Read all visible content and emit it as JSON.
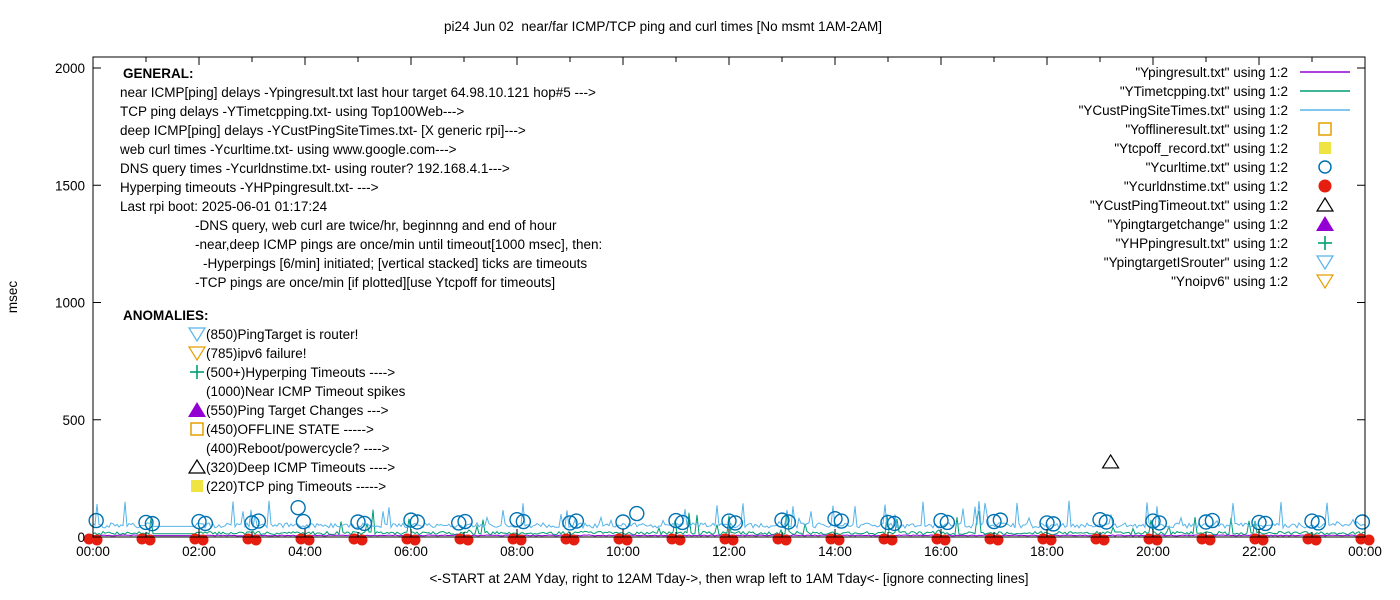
{
  "title": "pi24 Jun 02  near/far ICMP/TCP ping and curl times [No msmt 1AM-2AM]",
  "y_axis": {
    "label": "msec",
    "ticks": [
      0,
      500,
      1000,
      1500,
      2000
    ],
    "max": 2000
  },
  "x_axis": {
    "label": "<-START at 2AM Yday, right to 12AM Tday->, then wrap left to 1AM Tday<- [ignore connecting lines]",
    "tick_labels": [
      "00:00",
      "02:00",
      "04:00",
      "06:00",
      "08:00",
      "10:00",
      "12:00",
      "14:00",
      "16:00",
      "18:00",
      "20:00",
      "22:00",
      "00:00"
    ],
    "hours_span": 24
  },
  "general": {
    "heading": "GENERAL:",
    "lines": [
      {
        "indent": 0,
        "text": "near ICMP[ping] delays -Ypingresult.txt last hour target 64.98.10.121 hop#5 --->"
      },
      {
        "indent": 0,
        "text": "TCP ping delays -YTimetcpping.txt- using Top100Web--->"
      },
      {
        "indent": 0,
        "text": "deep ICMP[ping] delays -YCustPingSiteTimes.txt- [X generic rpi]--->"
      },
      {
        "indent": 0,
        "text": "web curl times -Ycurltime.txt- using www.google.com--->"
      },
      {
        "indent": 0,
        "text": "DNS query times -Ycurldnstime.txt- using router? 192.168.4.1--->"
      },
      {
        "indent": 0,
        "text": "Hyperping timeouts -YHPpingresult.txt- --->"
      },
      {
        "indent": 0,
        "text": "Last rpi boot: 2025-06-01 01:17:24"
      },
      {
        "indent": 1,
        "text": "-DNS query, web curl are twice/hr, beginnng and end of hour"
      },
      {
        "indent": 1,
        "text": "-near,deep ICMP pings are once/min until timeout[1000 msec], then:"
      },
      {
        "indent": 2,
        "text": "-Hyperpings [6/min] initiated; [vertical stacked] ticks are timeouts"
      },
      {
        "indent": 1,
        "text": "-TCP pings are once/min [if plotted][use Ytcpoff for timeouts]"
      }
    ]
  },
  "anomalies": {
    "heading": "ANOMALIES:",
    "items": [
      {
        "marker": "triangle-down-open",
        "color": "#56b4e9",
        "text": "(850)PingTarget is router!"
      },
      {
        "marker": "triangle-down-open",
        "color": "#e69f00",
        "text": "(785)ipv6 failure!"
      },
      {
        "marker": "plus",
        "color": "#009e73",
        "text": "(500+)Hyperping Timeouts ---->"
      },
      {
        "marker": "none",
        "color": "",
        "text": "(1000)Near ICMP Timeout spikes"
      },
      {
        "marker": "triangle-up-filled",
        "color": "#9400d3",
        "text": "(550)Ping Target Changes --->"
      },
      {
        "marker": "square-open",
        "color": "#e69f00",
        "text": "(450)OFFLINE STATE ----->"
      },
      {
        "marker": "none",
        "color": "",
        "text": "(400)Reboot/powercycle? ---->"
      },
      {
        "marker": "triangle-up-open",
        "color": "#000000",
        "text": "(320)Deep ICMP Timeouts ---->"
      },
      {
        "marker": "square-filled",
        "color": "#f0e442",
        "text": "(220)TCP ping Timeouts ----->"
      }
    ]
  },
  "legend": {
    "entries": [
      {
        "label": "\"Ypingresult.txt\" using 1:2",
        "marker": "line",
        "color": "#9400d3"
      },
      {
        "label": "\"YTimetcpping.txt\" using 1:2",
        "marker": "line",
        "color": "#009e73"
      },
      {
        "label": "\"YCustPingSiteTimes.txt\" using 1:2",
        "marker": "line",
        "color": "#56b4e9"
      },
      {
        "label": "\"Yofflineresult.txt\" using 1:2",
        "marker": "square-open",
        "color": "#e69f00"
      },
      {
        "label": "\"Ytcpoff_record.txt\" using 1:2",
        "marker": "square-filled",
        "color": "#f0e442"
      },
      {
        "label": "\"Ycurltime.txt\" using 1:2",
        "marker": "circle-open",
        "color": "#0072b2"
      },
      {
        "label": "\"Ycurldnstime.txt\" using 1:2",
        "marker": "circle-filled",
        "color": "#e51e10"
      },
      {
        "label": "\"YCustPingTimeout.txt\" using 1:2",
        "marker": "triangle-up-open",
        "color": "#000000"
      },
      {
        "label": "\"Ypingtargetchange\" using 1:2",
        "marker": "triangle-up-filled",
        "color": "#9400d3"
      },
      {
        "label": "\"YHPpingresult.txt\" using 1:2",
        "marker": "plus",
        "color": "#009e73"
      },
      {
        "label": "\"YpingtargetISrouter\" using 1:2",
        "marker": "triangle-down-open",
        "color": "#56b4e9"
      },
      {
        "label": "\"Ynoipv6\" using 1:2",
        "marker": "triangle-down-open",
        "color": "#e69f00"
      }
    ]
  },
  "chart_data": {
    "type": "line",
    "title": "pi24 Jun 02  near/far ICMP/TCP ping and curl times [No msmt 1AM-2AM]",
    "xlabel": "<-START at 2AM Yday, right to 12AM Tday->, then wrap left to 1AM Tday<- [ignore connecting lines]",
    "ylabel": "msec",
    "xlim_hours": [
      0,
      24
    ],
    "ylim": [
      0,
      2000
    ],
    "grid": false,
    "legend_position": "top-right",
    "measurement_gap": {
      "start_hour": 1,
      "end_hour": 2,
      "note": "No msmt 1AM-2AM"
    },
    "noise_seed": 7,
    "series": [
      {
        "name": "Ypingresult.txt",
        "style": "line",
        "color": "#9400d3",
        "desc": "near ICMP ping delay",
        "approx_baseline_msec": 6,
        "approx_noise_msec": 4,
        "spike_max_msec": 12,
        "spike_chance": 0
      },
      {
        "name": "YTimetcpping.txt",
        "style": "line",
        "color": "#009e73",
        "desc": "TCP ping delay",
        "approx_baseline_msec": 14,
        "approx_noise_msec": 14,
        "spike_max_msec": 110,
        "spike_chance": 0.05
      },
      {
        "name": "YCustPingSiteTimes.txt",
        "style": "line",
        "color": "#56b4e9",
        "desc": "deep ICMP ping delay",
        "approx_baseline_msec": 45,
        "approx_noise_msec": 22,
        "spike_max_msec": 150,
        "spike_chance": 0.08
      },
      {
        "name": "Ycurltime.txt",
        "style": "points",
        "marker": "circle-open",
        "color": "#0072b2",
        "desc": "web curl times, twice per hour",
        "points_hour_msec": [
          [
            0.06,
            70
          ],
          [
            1.0,
            62
          ],
          [
            1.12,
            57
          ],
          [
            2.0,
            66
          ],
          [
            2.12,
            58
          ],
          [
            3.0,
            60
          ],
          [
            3.12,
            68
          ],
          [
            3.87,
            125
          ],
          [
            3.97,
            66
          ],
          [
            5.0,
            64
          ],
          [
            5.12,
            58
          ],
          [
            6.0,
            72
          ],
          [
            6.12,
            64
          ],
          [
            6.9,
            60
          ],
          [
            7.02,
            66
          ],
          [
            8.0,
            74
          ],
          [
            8.12,
            66
          ],
          [
            9.0,
            60
          ],
          [
            9.12,
            68
          ],
          [
            10.0,
            64
          ],
          [
            10.26,
            100
          ],
          [
            11.0,
            70
          ],
          [
            11.12,
            62
          ],
          [
            12.0,
            68
          ],
          [
            12.12,
            60
          ],
          [
            13.0,
            72
          ],
          [
            13.12,
            64
          ],
          [
            14.0,
            78
          ],
          [
            14.12,
            68
          ],
          [
            15.0,
            62
          ],
          [
            15.12,
            58
          ],
          [
            16.0,
            70
          ],
          [
            16.12,
            62
          ],
          [
            17.0,
            66
          ],
          [
            17.12,
            72
          ],
          [
            18.0,
            60
          ],
          [
            18.12,
            56
          ],
          [
            19.0,
            74
          ],
          [
            19.12,
            64
          ],
          [
            20.0,
            68
          ],
          [
            20.12,
            60
          ],
          [
            21.0,
            64
          ],
          [
            21.12,
            70
          ],
          [
            22.0,
            62
          ],
          [
            22.12,
            58
          ],
          [
            23.0,
            68
          ],
          [
            23.12,
            60
          ],
          [
            23.95,
            64
          ]
        ]
      },
      {
        "name": "Ycurldnstime.txt",
        "style": "points",
        "marker": "circle-filled",
        "color": "#e51e10",
        "desc": "DNS query times, twice per hour, plotted at ~0 msec",
        "points_hours": [
          0,
          1,
          2,
          3,
          4,
          5,
          6,
          7,
          8,
          9,
          10,
          11,
          12,
          13,
          14,
          15,
          16,
          17,
          18,
          19,
          20,
          21,
          22,
          23,
          24
        ],
        "value_msec": 0
      },
      {
        "name": "YCustPingTimeout.txt",
        "style": "points",
        "marker": "triangle-up-open",
        "color": "#000000",
        "desc": "deep ICMP timeout anomaly markers",
        "points_hour_msec": [
          [
            19.2,
            320
          ]
        ]
      },
      {
        "name": "Yofflineresult.txt",
        "style": "points",
        "marker": "square-open",
        "color": "#e69f00",
        "points_hour_msec": []
      },
      {
        "name": "Ytcpoff_record.txt",
        "style": "points",
        "marker": "square-filled",
        "color": "#f0e442",
        "points_hour_msec": []
      },
      {
        "name": "Ypingtargetchange",
        "style": "points",
        "marker": "triangle-up-filled",
        "color": "#9400d3",
        "points_hour_msec": []
      },
      {
        "name": "YHPpingresult.txt",
        "style": "points",
        "marker": "plus",
        "color": "#009e73",
        "points_hour_msec": []
      },
      {
        "name": "YpingtargetISrouter",
        "style": "points",
        "marker": "triangle-down-open",
        "color": "#56b4e9",
        "points_hour_msec": []
      },
      {
        "name": "Ynoipv6",
        "style": "points",
        "marker": "triangle-down-open",
        "color": "#e69f00",
        "points_hour_msec": []
      }
    ]
  }
}
